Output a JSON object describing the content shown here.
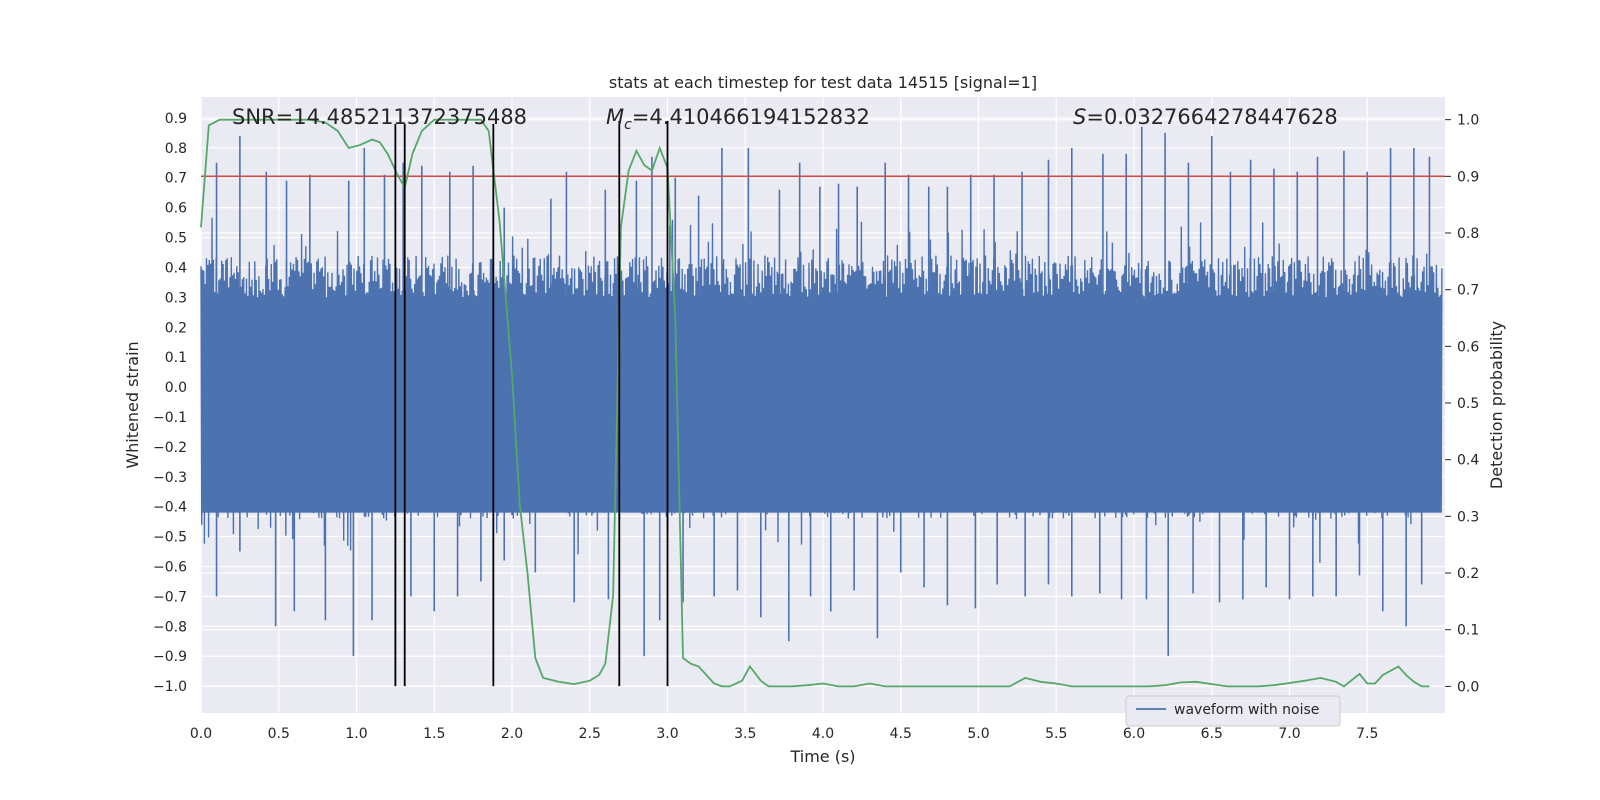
{
  "chart_data": {
    "type": "line",
    "title": "stats at each timestep for test data 14515 [signal=1]",
    "xlabel": "Time (s)",
    "ylabel": "Whitened strain",
    "y2label": "Detection probability",
    "xlim": [
      0.0,
      8.0
    ],
    "ylim": [
      -1.09,
      0.97
    ],
    "y2lim": [
      -0.047,
      1.04
    ],
    "xticks": [
      "0.0",
      "0.5",
      "1.0",
      "1.5",
      "2.0",
      "2.5",
      "3.0",
      "3.5",
      "4.0",
      "4.5",
      "5.0",
      "5.5",
      "6.0",
      "6.5",
      "7.0",
      "7.5"
    ],
    "yticks": [
      "0.9",
      "0.8",
      "0.7",
      "0.6",
      "0.5",
      "0.4",
      "0.3",
      "0.2",
      "0.1",
      "0.0",
      "−0.1",
      "−0.2",
      "−0.3",
      "−0.4",
      "−0.5",
      "−0.6",
      "−0.7",
      "−0.8",
      "−0.9",
      "−1.0"
    ],
    "y2ticks": [
      "1.0",
      "0.9",
      "0.8",
      "0.7",
      "0.6",
      "0.5",
      "0.4",
      "0.3",
      "0.2",
      "0.1",
      "0.0"
    ],
    "annotations": {
      "snr": "SNR=14.485211372375488",
      "mc_symbol": "M",
      "mc_sub": "c",
      "mc_value": "=4.410466194152832",
      "s_symbol": "S",
      "s_value": "=0.0327664278447628"
    },
    "threshold": {
      "y2": 0.9,
      "color": "#c44e52"
    },
    "vertical_lines": [
      {
        "x": 1.25,
        "y_from": -1.0,
        "y_to": 0.88
      },
      {
        "x": 1.31,
        "y_from": -1.0,
        "y_to": 0.88
      },
      {
        "x": 1.88,
        "y_from": -1.0,
        "y_to": 0.88
      },
      {
        "x": 2.69,
        "y_from": -1.0,
        "y_to": 0.89
      },
      {
        "x": 3.0,
        "y_from": -1.0,
        "y_to": 0.89
      }
    ],
    "series": [
      {
        "name": "waveform with noise",
        "color": "#4c72b0",
        "axis": "left",
        "description": "dense whitened strain time series, roughly within ±0.45 with spikes up to 0.87 and down to -1.0",
        "spikes": {
          "x": [
            0.1,
            0.25,
            0.42,
            0.55,
            0.7,
            0.95,
            1.05,
            1.18,
            1.3,
            1.42,
            1.6,
            1.75,
            1.95,
            2.25,
            2.35,
            2.6,
            2.8,
            2.9,
            3.05,
            3.2,
            3.35,
            3.52,
            3.72,
            3.85,
            3.98,
            4.1,
            4.22,
            4.4,
            4.55,
            4.68,
            4.8,
            4.95,
            5.1,
            5.28,
            5.45,
            5.6,
            5.8,
            5.95,
            6.05,
            6.2,
            6.35,
            6.5,
            6.62,
            6.75,
            6.9,
            7.05,
            7.18,
            7.35,
            7.5,
            7.65,
            7.8,
            7.9
          ],
          "y": [
            0.75,
            0.84,
            0.72,
            0.69,
            0.71,
            0.69,
            0.8,
            0.71,
            0.75,
            0.74,
            0.72,
            0.74,
            0.6,
            0.63,
            0.72,
            0.66,
            0.69,
            0.77,
            0.7,
            0.64,
            0.8,
            0.8,
            0.66,
            0.75,
            0.67,
            0.68,
            0.67,
            0.75,
            0.71,
            0.67,
            0.67,
            0.71,
            0.71,
            0.72,
            0.76,
            0.8,
            0.78,
            0.78,
            0.87,
            0.85,
            0.75,
            0.84,
            0.72,
            0.76,
            0.73,
            0.72,
            0.77,
            0.79,
            0.72,
            0.8,
            0.8,
            0.77
          ],
          "neg_x": [
            0.1,
            0.25,
            0.48,
            0.6,
            0.8,
            0.98,
            1.1,
            1.25,
            1.35,
            1.5,
            1.65,
            1.8,
            1.95,
            2.15,
            2.4,
            2.62,
            2.85,
            2.95,
            3.1,
            3.3,
            3.45,
            3.6,
            3.78,
            3.92,
            4.05,
            4.2,
            4.35,
            4.5,
            4.65,
            4.8,
            4.98,
            5.12,
            5.3,
            5.45,
            5.6,
            5.78,
            5.92,
            6.08,
            6.22,
            6.38,
            6.55,
            6.7,
            6.85,
            7.0,
            7.15,
            7.3,
            7.45,
            7.6,
            7.75,
            7.85
          ],
          "neg_y": [
            -0.7,
            -0.55,
            -0.8,
            -0.75,
            -0.78,
            -0.9,
            -0.78,
            -1.0,
            -0.7,
            -0.75,
            -0.7,
            -0.65,
            -0.58,
            -0.62,
            -0.72,
            -0.71,
            -0.9,
            -0.78,
            -0.72,
            -0.7,
            -0.68,
            -0.77,
            -0.85,
            -0.7,
            -0.75,
            -0.68,
            -0.84,
            -0.62,
            -0.67,
            -0.73,
            -0.74,
            -0.66,
            -0.7,
            -0.66,
            -0.7,
            -0.69,
            -0.71,
            -0.71,
            -0.9,
            -0.69,
            -0.72,
            -0.71,
            -0.67,
            -0.71,
            -0.7,
            -0.7,
            -0.63,
            -0.75,
            -0.8,
            -0.66
          ]
        }
      },
      {
        "name": "detection probability",
        "color": "#55a868",
        "axis": "right",
        "x": [
          0.0,
          0.05,
          0.12,
          0.3,
          0.5,
          0.7,
          0.8,
          0.88,
          0.95,
          1.02,
          1.1,
          1.15,
          1.2,
          1.26,
          1.31,
          1.36,
          1.42,
          1.5,
          1.6,
          1.7,
          1.8,
          1.85,
          1.92,
          2.0,
          2.05,
          2.1,
          2.15,
          2.2,
          2.3,
          2.4,
          2.5,
          2.56,
          2.6,
          2.65,
          2.7,
          2.75,
          2.8,
          2.85,
          2.9,
          2.95,
          3.0,
          3.05,
          3.1,
          3.15,
          3.2,
          3.3,
          3.35,
          3.4,
          3.48,
          3.53,
          3.6,
          3.65,
          3.7,
          3.8,
          3.9,
          4.0,
          4.1,
          4.2,
          4.3,
          4.4,
          4.5,
          4.6,
          4.7,
          4.8,
          4.9,
          5.0,
          5.1,
          5.2,
          5.3,
          5.4,
          5.5,
          5.6,
          5.7,
          5.8,
          5.9,
          6.0,
          6.1,
          6.2,
          6.3,
          6.4,
          6.5,
          6.6,
          6.7,
          6.8,
          6.9,
          7.0,
          7.1,
          7.2,
          7.3,
          7.35,
          7.45,
          7.5,
          7.55,
          7.6,
          7.7,
          7.75,
          7.8,
          7.85,
          7.9
        ],
        "y": [
          0.81,
          0.99,
          1.0,
          1.0,
          1.0,
          1.0,
          0.995,
          0.98,
          0.95,
          0.955,
          0.965,
          0.96,
          0.94,
          0.905,
          0.88,
          0.94,
          0.98,
          1.0,
          1.0,
          1.0,
          1.0,
          0.98,
          0.82,
          0.55,
          0.32,
          0.2,
          0.05,
          0.015,
          0.008,
          0.004,
          0.01,
          0.02,
          0.04,
          0.16,
          0.81,
          0.91,
          0.945,
          0.92,
          0.91,
          0.95,
          0.915,
          0.65,
          0.05,
          0.04,
          0.035,
          0.005,
          0.0,
          0.0,
          0.01,
          0.035,
          0.01,
          0.0,
          0.0,
          0.0,
          0.002,
          0.005,
          0.0,
          0.0,
          0.005,
          0.0,
          0.0,
          0.0,
          0.0,
          0.0,
          0.0,
          0.0,
          0.0,
          0.0,
          0.015,
          0.008,
          0.005,
          0.0,
          0.0,
          0.0,
          0.0,
          0.0,
          0.0,
          0.002,
          0.007,
          0.008,
          0.004,
          0.0,
          0.0,
          0.0,
          0.002,
          0.006,
          0.01,
          0.015,
          0.008,
          0.0,
          0.022,
          0.005,
          0.005,
          0.02,
          0.035,
          0.02,
          0.008,
          0.0,
          0.0
        ]
      }
    ],
    "legend": {
      "label": "waveform with noise",
      "placement": "lower-right"
    }
  }
}
